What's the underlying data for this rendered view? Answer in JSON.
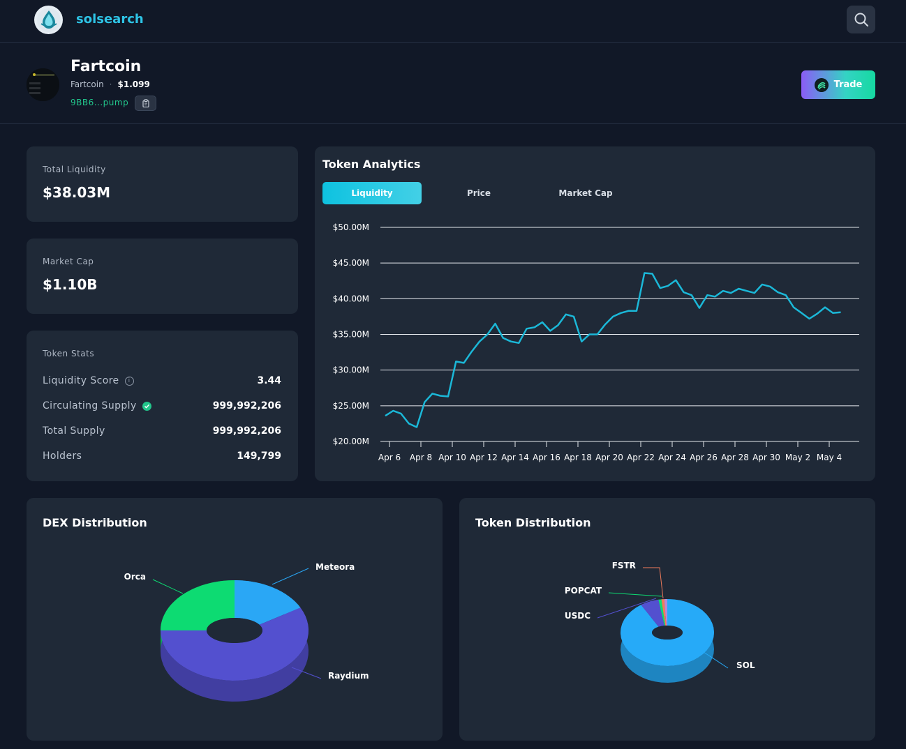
{
  "app": {
    "brand": "solsearch"
  },
  "token": {
    "name": "Fartcoin",
    "symbol": "Fartcoin",
    "price": "$1.099",
    "address": "9BB6...pump",
    "trade_label": "Trade"
  },
  "stats": {
    "total_liquidity_label": "Total Liquidity",
    "total_liquidity_value": "$38.03M",
    "market_cap_label": "Market Cap",
    "market_cap_value": "$1.10B"
  },
  "token_stats": {
    "title": "Token Stats",
    "rows": [
      {
        "label": "Liquidity Score",
        "value": "3.44"
      },
      {
        "label": "Circulating Supply",
        "value": "999,992,206"
      },
      {
        "label": "Total Supply",
        "value": "999,992,206"
      },
      {
        "label": "Holders",
        "value": "149,799"
      }
    ]
  },
  "analytics": {
    "title": "Token Analytics",
    "tabs": [
      "Liquidity",
      "Price",
      "Market Cap"
    ],
    "active_tab": "Liquidity"
  },
  "colors": {
    "line": "#1bb8d8",
    "accent": "#0ec2e0",
    "green": "#22c58b"
  },
  "dex_distribution": {
    "title": "DEX Distribution"
  },
  "token_distribution": {
    "title": "Token Distribution"
  },
  "chart_data": [
    {
      "type": "line",
      "title": "",
      "xlabel": "",
      "ylabel": "",
      "ylim": [
        20,
        50
      ],
      "y_unit": "$M",
      "y_ticks": [
        "$50.00M",
        "$45.00M",
        "$40.00M",
        "$35.00M",
        "$30.00M",
        "$25.00M",
        "$20.00M"
      ],
      "x_ticks": [
        "Apr 6",
        "Apr 8",
        "Apr 10",
        "Apr 12",
        "Apr 14",
        "Apr 16",
        "Apr 18",
        "Apr 20",
        "Apr 22",
        "Apr 24",
        "Apr 26",
        "Apr 28",
        "Apr 30",
        "May 2",
        "May 4"
      ],
      "grid": true,
      "series": [
        {
          "x": [
            "Apr 6",
            "Apr 6.5",
            "Apr 7",
            "Apr 7.5",
            "Apr 8",
            "Apr 8.5",
            "Apr 9",
            "Apr 9.5",
            "Apr 10",
            "Apr 10.5",
            "Apr 11",
            "Apr 11.5",
            "Apr 12",
            "Apr 12.5",
            "Apr 13",
            "Apr 13.5",
            "Apr 14",
            "Apr 14.5",
            "Apr 15",
            "Apr 15.5",
            "Apr 16",
            "Apr 16.5",
            "Apr 17",
            "Apr 17.5",
            "Apr 18",
            "Apr 18.5",
            "Apr 19",
            "Apr 19.5",
            "Apr 20",
            "Apr 20.5",
            "Apr 21",
            "Apr 21.5",
            "Apr 22",
            "Apr 22.5",
            "Apr 23",
            "Apr 23.5",
            "Apr 24",
            "Apr 24.5",
            "Apr 25",
            "Apr 25.5",
            "Apr 26",
            "Apr 26.5",
            "Apr 27",
            "Apr 27.5",
            "Apr 28",
            "Apr 28.5",
            "Apr 29",
            "Apr 29.5",
            "Apr 30",
            "Apr 30.5",
            "May 1",
            "May 1.5",
            "May 2",
            "May 2.5",
            "May 3",
            "May 3.5",
            "May 4",
            "May 4.5",
            "May 5"
          ],
          "values": [
            23.6,
            24.3,
            23.9,
            22.5,
            22.0,
            25.5,
            26.7,
            26.4,
            26.3,
            31.2,
            31.0,
            32.6,
            34.0,
            35.0,
            36.5,
            34.5,
            34.0,
            33.8,
            35.8,
            36.0,
            36.7,
            35.5,
            36.3,
            37.8,
            37.5,
            34.0,
            35.0,
            35.0,
            36.4,
            37.5,
            38.0,
            38.3,
            38.3,
            43.6,
            43.5,
            41.5,
            41.8,
            42.6,
            40.9,
            40.5,
            38.7,
            40.5,
            40.3,
            41.1,
            40.8,
            41.4,
            41.1,
            40.8,
            42.0,
            41.7,
            40.9,
            40.5,
            38.8,
            38.0,
            37.2,
            37.9,
            38.8,
            38.0,
            38.1
          ]
        }
      ]
    },
    {
      "type": "pie",
      "title": "DEX Distribution",
      "slices": [
        {
          "label": "Meteora",
          "value": 17.5,
          "color": "#2aa7f5"
        },
        {
          "label": "Raydium",
          "value": 57.5,
          "color": "#5350cf"
        },
        {
          "label": "Orca",
          "value": 25.0,
          "color": "#0ddb72"
        }
      ]
    },
    {
      "type": "pie",
      "title": "Token Distribution",
      "slices": [
        {
          "label": "SOL",
          "value": 90.5,
          "color": "#26aaf8"
        },
        {
          "label": "USDC",
          "value": 6.5,
          "color": "#5350cf"
        },
        {
          "label": "POPCAT",
          "value": 1.0,
          "color": "#0ddb72"
        },
        {
          "label": "FSTR",
          "value": 1.0,
          "color": "#f07b5b"
        },
        {
          "label": "",
          "value": 1.0,
          "color": "#b58bd8"
        }
      ]
    }
  ]
}
